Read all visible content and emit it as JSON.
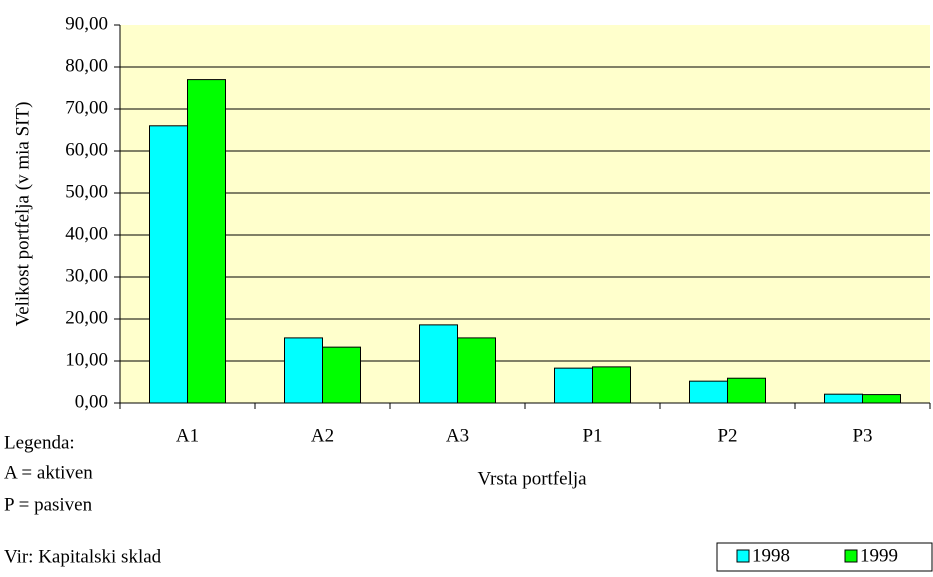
{
  "chart_data": {
    "type": "bar",
    "y_label": "Velikost portfelja (v mia SIT)",
    "x_label": "Vrsta portfelja",
    "categories": [
      "A1",
      "A2",
      "A3",
      "P1",
      "P2",
      "P3"
    ],
    "series": [
      {
        "name": "1998",
        "color": "#00ffff",
        "values": [
          66,
          15.5,
          18.6,
          8.3,
          5.2,
          2.1
        ]
      },
      {
        "name": "1999",
        "color": "#00ff00",
        "values": [
          77,
          13.3,
          15.5,
          8.6,
          5.9,
          2.0
        ]
      }
    ],
    "ylim": [
      0,
      90
    ],
    "yticks": [
      {
        "value": 0,
        "label": "0,00"
      },
      {
        "value": 10,
        "label": "10,00"
      },
      {
        "value": 20,
        "label": "20,00"
      },
      {
        "value": 30,
        "label": "30,00"
      },
      {
        "value": 40,
        "label": "40,00"
      },
      {
        "value": 50,
        "label": "50,00"
      },
      {
        "value": 60,
        "label": "60,00"
      },
      {
        "value": 70,
        "label": "70,00"
      },
      {
        "value": 80,
        "label": "80,00"
      },
      {
        "value": 90,
        "label": "90,00"
      }
    ],
    "grid": true,
    "plot_background": "#ffffcc",
    "legend_position": "bottom-right",
    "annotations": [
      "Legenda:",
      "A = aktiven",
      "P = pasiven",
      "Vir: Kapitalski sklad"
    ]
  }
}
